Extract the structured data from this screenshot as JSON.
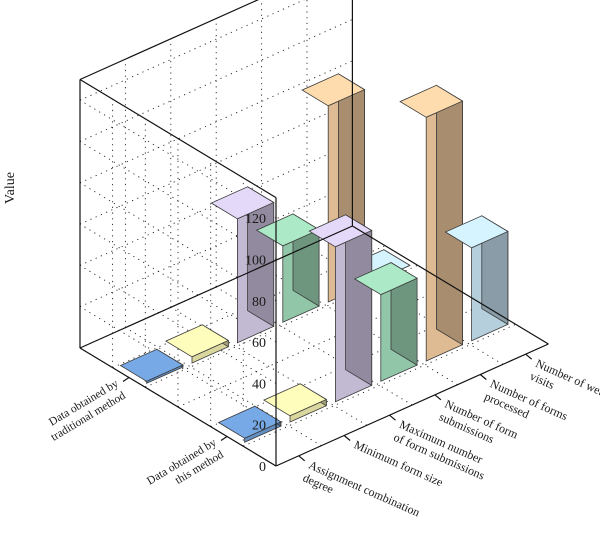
{
  "chart_data": {
    "type": "bar",
    "ylabel": "Value",
    "ylim": [
      0,
      130
    ],
    "yticks": [
      0,
      20,
      40,
      60,
      80,
      100,
      120
    ],
    "grid": true,
    "categories": [
      "Assignment combination degree",
      "Minimum form size",
      "Maximum number of form submissions",
      "Number of form submissions",
      "Number of forms processed",
      "Number of website visits"
    ],
    "category_labels": [
      [
        "Assignment combination",
        "degree"
      ],
      [
        "Minimum form size"
      ],
      [
        "Maximum number",
        "of form submissions"
      ],
      [
        "Number of form",
        "submissions"
      ],
      [
        "Number of forms",
        "processed"
      ],
      [
        "Number of website",
        "visits"
      ]
    ],
    "rows": [
      [
        "Data obtained by",
        "traditional method"
      ],
      [
        "Data obtained by",
        "this method"
      ]
    ],
    "series": [
      {
        "values": [
          1,
          3,
          60,
          37,
          95,
          0
        ]
      },
      {
        "values": [
          2,
          3,
          75,
          42,
          118,
          45
        ]
      }
    ],
    "colors": {
      "Assignment combination degree": "#6f9fd8",
      "Minimum form size": "#f2efb0",
      "Maximum number of form submissions": "#d7cdea",
      "Number of form submissions": "#a2dcbb",
      "Number of forms processed": "#f7d0a3",
      "Number of website visits": "#c9e6f5"
    }
  }
}
